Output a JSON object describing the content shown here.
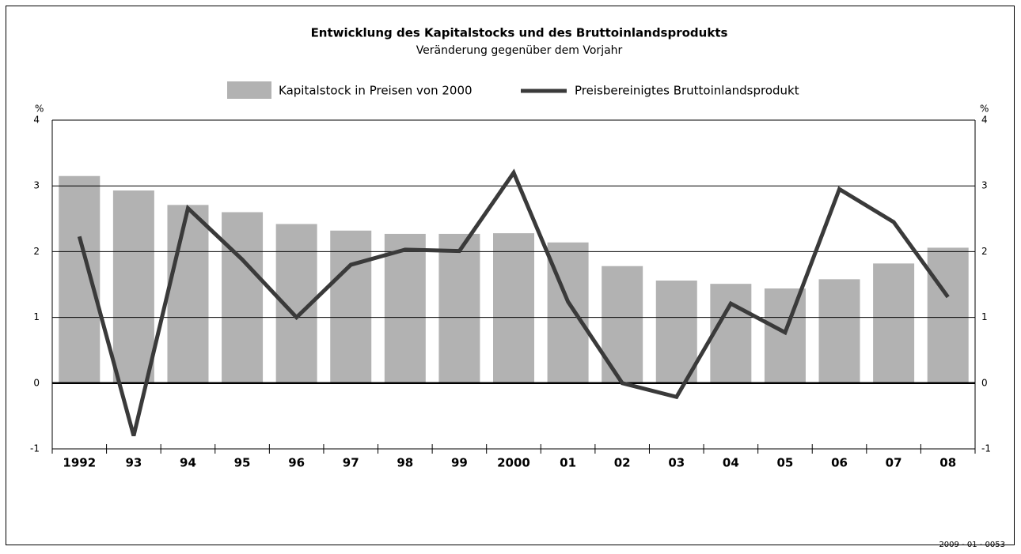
{
  "chart_data": {
    "type": "bar_line",
    "title": "Entwicklung des Kapitalstocks und des Bruttoinlandsprodukts",
    "subtitle": "Veränderung gegenüber dem Vorjahr",
    "categories": [
      "1992",
      "93",
      "94",
      "95",
      "96",
      "97",
      "98",
      "99",
      "2000",
      "01",
      "02",
      "03",
      "04",
      "05",
      "06",
      "07",
      "08"
    ],
    "series": [
      {
        "name": "Kapitalstock in Preisen von 2000",
        "type": "bar",
        "color": "#b2b2b2",
        "values": [
          3.15,
          2.93,
          2.71,
          2.6,
          2.42,
          2.32,
          2.27,
          2.27,
          2.28,
          2.14,
          1.78,
          1.56,
          1.51,
          1.44,
          1.58,
          1.82,
          2.06
        ]
      },
      {
        "name": "Preisbereinigtes Bruttoinlandsprodukt",
        "type": "line",
        "color": "#3a3a3a",
        "axis": "y2",
        "values": [
          2.23,
          -0.8,
          2.66,
          1.88,
          1.0,
          1.8,
          2.03,
          2.01,
          3.2,
          1.24,
          0.0,
          -0.21,
          1.21,
          0.77,
          2.95,
          2.45,
          1.31
        ]
      }
    ],
    "y_unit": "%",
    "y2_unit": "%",
    "ylim": [
      -1,
      4
    ],
    "yticks": [
      -1,
      0,
      1,
      2,
      3,
      4
    ],
    "y2lim": [
      -1,
      4
    ],
    "y2ticks": [
      -1,
      0,
      1,
      2,
      3,
      4
    ],
    "grid": true,
    "legend": "top",
    "source": "2009 - 01 - 0053"
  }
}
